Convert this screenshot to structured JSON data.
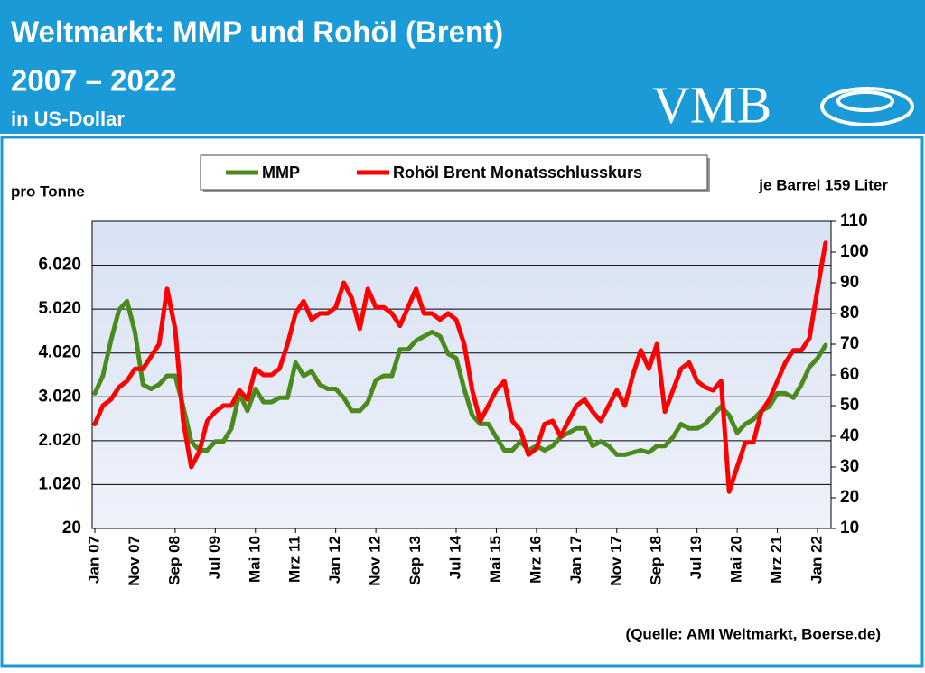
{
  "header": {
    "title": "Weltmarkt: MMP und Rohöl (Brent)",
    "subtitle": "2007 – 2022",
    "unit": "in US-Dollar",
    "logo": "VMB"
  },
  "chart_data": {
    "type": "line",
    "y_label": "pro Tonne",
    "y2_label": "je Barrel 159 Liter",
    "source": "(Quelle: AMI Weltmarkt, Boerse.de)",
    "categories": [
      "Jan 07",
      null,
      null,
      null,
      null,
      "Nov 07",
      null,
      null,
      null,
      null,
      "Sep 08",
      null,
      null,
      null,
      null,
      "Jul 09",
      null,
      null,
      null,
      null,
      "Mai 10",
      null,
      null,
      null,
      null,
      "Mrz 11",
      null,
      null,
      null,
      null,
      "Jan 12",
      null,
      null,
      null,
      null,
      "Nov 12",
      null,
      null,
      null,
      null,
      "Sep 13",
      null,
      null,
      null,
      null,
      "Jul 14",
      null,
      null,
      null,
      null,
      "Mai 15",
      null,
      null,
      null,
      null,
      "Mrz 16",
      null,
      null,
      null,
      null,
      "Jan 17",
      null,
      null,
      null,
      null,
      "Nov 17",
      null,
      null,
      null,
      null,
      "Sep 18",
      null,
      null,
      null,
      null,
      "Jul 19",
      null,
      null,
      null,
      null,
      "Mai 20",
      null,
      null,
      null,
      null,
      "Mrz 21",
      null,
      null,
      null,
      null,
      "Jan 22",
      null
    ],
    "series": [
      {
        "name": "MMP",
        "color": "#4b8a1c",
        "axis": "y",
        "values": [
          3100,
          3500,
          4300,
          5000,
          5200,
          4500,
          3300,
          3200,
          3300,
          3500,
          3500,
          2800,
          2000,
          1800,
          1800,
          2000,
          2000,
          2300,
          3100,
          2700,
          3200,
          2900,
          2900,
          3000,
          3000,
          3800,
          3500,
          3600,
          3300,
          3200,
          3200,
          3000,
          2700,
          2700,
          2900,
          3400,
          3500,
          3500,
          4100,
          4100,
          4300,
          4400,
          4500,
          4400,
          4000,
          3900,
          3200,
          2600,
          2400,
          2400,
          2100,
          1800,
          1800,
          2000,
          1800,
          1900,
          1800,
          1900,
          2100,
          2200,
          2300,
          2300,
          1900,
          2000,
          1900,
          1700,
          1700,
          1750,
          1800,
          1750,
          1900,
          1900,
          2100,
          2400,
          2300,
          2300,
          2400,
          2600,
          2800,
          2600,
          2200,
          2400,
          2500,
          2700,
          2800,
          3100,
          3100,
          3000,
          3300,
          3700,
          3900,
          4200
        ]
      },
      {
        "name": "Rohöl Brent Monatsschlusskurs",
        "color": "#ff0000",
        "axis": "y2",
        "values": [
          44,
          50,
          52,
          56,
          58,
          62,
          62,
          66,
          70,
          88,
          75,
          45,
          30,
          35,
          45,
          48,
          50,
          50,
          55,
          52,
          62,
          60,
          60,
          62,
          70,
          80,
          84,
          78,
          80,
          80,
          82,
          90,
          85,
          75,
          88,
          82,
          82,
          80,
          76,
          82,
          88,
          80,
          80,
          78,
          80,
          78,
          70,
          55,
          45,
          50,
          55,
          58,
          45,
          42,
          34,
          36,
          44,
          45,
          40,
          45,
          50,
          52,
          48,
          45,
          50,
          55,
          50,
          60,
          68,
          62,
          70,
          48,
          55,
          62,
          64,
          58,
          56,
          55,
          58,
          22,
          30,
          38,
          38,
          48,
          52,
          58,
          64,
          68,
          68,
          72,
          88,
          103
        ]
      }
    ],
    "ylim": [
      20,
      7020
    ],
    "yticks": [
      20,
      {
        "value": 1020,
        "label": "1.020"
      },
      {
        "value": 2020,
        "label": "2.020"
      },
      {
        "value": 3020,
        "label": "3.020"
      },
      {
        "value": 4020,
        "label": "4.020"
      },
      {
        "value": 5020,
        "label": "5.020"
      },
      {
        "value": 6020,
        "label": "6.020"
      }
    ],
    "y2lim": [
      10,
      110
    ],
    "y2ticks": [
      10,
      20,
      30,
      40,
      50,
      60,
      70,
      80,
      90,
      100,
      110
    ],
    "grid": true
  }
}
